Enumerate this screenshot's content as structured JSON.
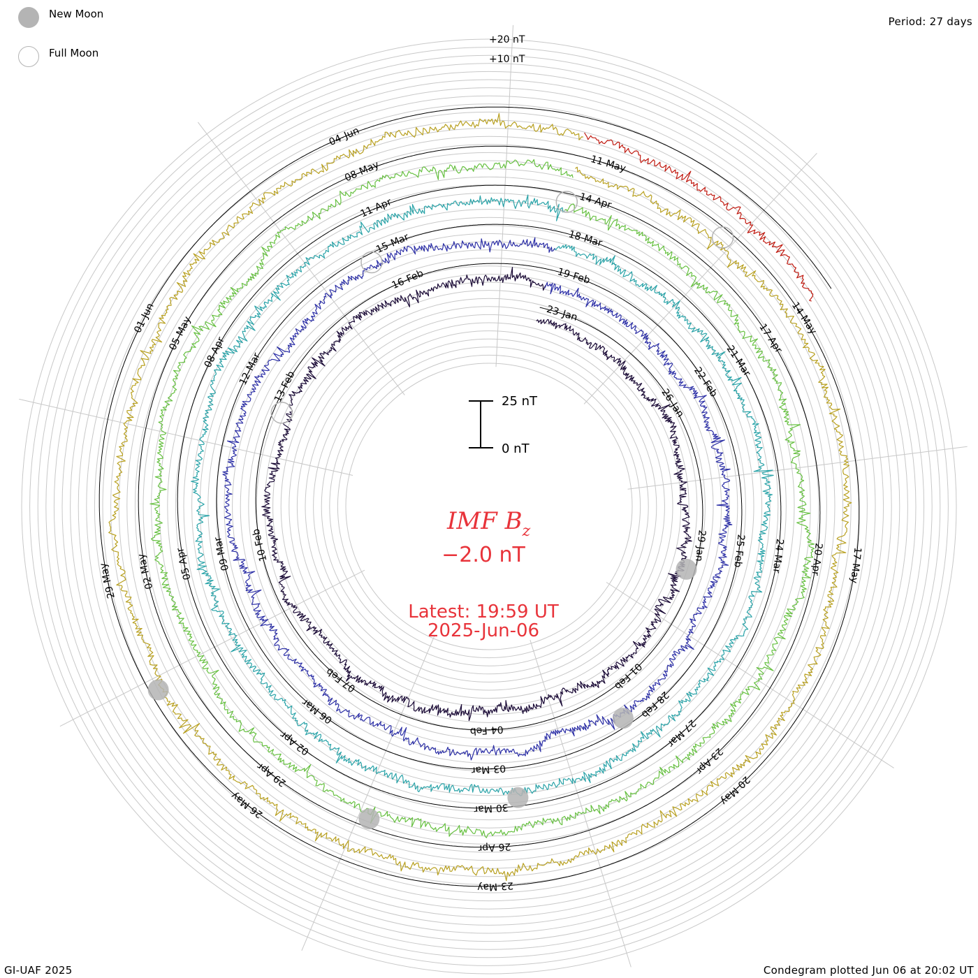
{
  "legend": {
    "new_moon_label": "New Moon",
    "full_moon_label": "Full Moon",
    "new_moon_color": "#b4b4b4",
    "full_moon_color": "#b4b4b4"
  },
  "header": {
    "period": "Period: 27 days"
  },
  "footer": {
    "credit": "GI-UAF 2025",
    "plotted": "Condegram plotted Jun 06 at 20:02 UT"
  },
  "ring_scale": {
    "labels": [
      "+20 nT",
      "+10 nT"
    ]
  },
  "scale_bar": {
    "top_label": "25 nT",
    "bottom_label": "0 nT"
  },
  "center": {
    "quantity": "IMF B",
    "subscript": "z",
    "value": "−2.0 nT",
    "latest": "Latest: 19:59 UT",
    "date": "2025-Jun-06"
  },
  "chart_data": {
    "type": "line",
    "title": "IMF Bz",
    "period_days": 27,
    "units": "nT",
    "series": [
      {
        "name": "",
        "start": "2025-01-22",
        "color": "#1a0a36",
        "date_labels": [
          "23-Jan",
          "26-Jan",
          "29-Jan",
          "01-Feb",
          "04-Feb",
          "07-Feb",
          "10-Feb",
          "13-Feb",
          "16-Feb"
        ]
      },
      {
        "name": "",
        "start": "2025-02-17",
        "color": "#2c2fa6",
        "date_labels": [
          "19-Feb",
          "22-Feb",
          "25-Feb",
          "28-Feb",
          "03-Mar",
          "06-Mar",
          "09-Mar",
          "12-Mar",
          "15-Mar"
        ]
      },
      {
        "name": "",
        "start": "2025-03-16",
        "color": "#2aa3a8",
        "date_labels": [
          "18-Mar",
          "21-Mar",
          "24-Mar",
          "27-Mar",
          "30-Mar",
          "02-Apr",
          "05-Apr",
          "08-Apr",
          "11-Apr"
        ]
      },
      {
        "name": "",
        "start": "2025-04-12",
        "color": "#66c040",
        "date_labels": [
          "14-Apr",
          "17-Apr",
          "20-Apr",
          "23-Apr",
          "26-Apr",
          "29-Apr",
          "02-May",
          "05-May",
          "08-May"
        ]
      },
      {
        "name": "",
        "start": "2025-05-09",
        "color": "#b8a020",
        "date_labels": [
          "11-May",
          "14-May",
          "17-May",
          "20-May",
          "23-May",
          "26-May",
          "29-May",
          "01-Jun",
          "04-Jun"
        ]
      },
      {
        "name": "",
        "start": "2025-06-05",
        "color": "#c01a10",
        "date_labels": []
      }
    ],
    "moon_events": [
      {
        "type": "new",
        "date": "2025-01-29"
      },
      {
        "type": "full",
        "date": "2025-02-12"
      },
      {
        "type": "new",
        "date": "2025-02-28"
      },
      {
        "type": "full",
        "date": "2025-03-14"
      },
      {
        "type": "new",
        "date": "2025-03-29"
      },
      {
        "type": "full",
        "date": "2025-04-13"
      },
      {
        "type": "new",
        "date": "2025-04-27"
      },
      {
        "type": "full",
        "date": "2025-05-12"
      },
      {
        "type": "new",
        "date": "2025-05-27"
      }
    ],
    "latest_value": -2.0
  }
}
